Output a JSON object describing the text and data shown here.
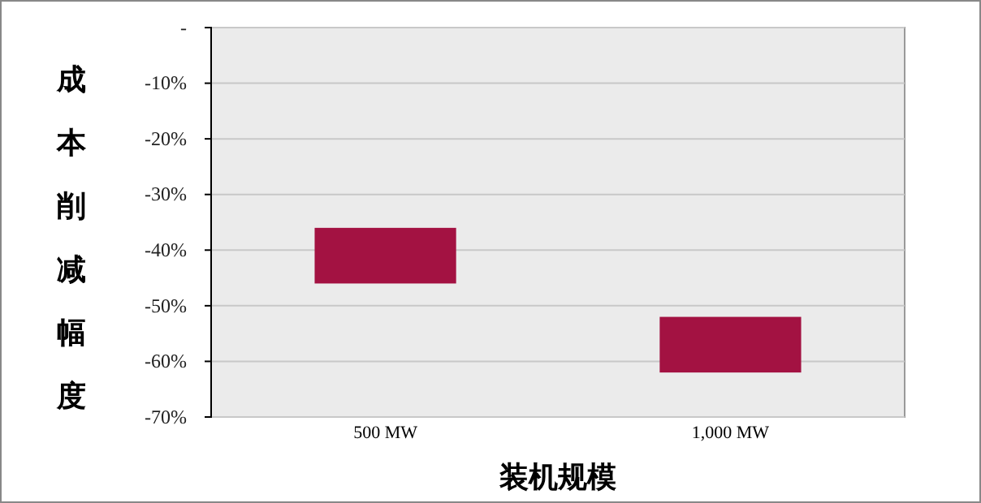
{
  "chart_data": {
    "type": "bar",
    "xlabel": "装机规模",
    "ylabel": "成本削减幅度",
    "categories": [
      "500 MW",
      "1,000 MW"
    ],
    "values": [
      10,
      10
    ],
    "base": [
      -46,
      -62
    ],
    "color": "#a31242",
    "ylim": [
      -70,
      0
    ],
    "yticks": [
      {
        "value": 0,
        "label": "-"
      },
      {
        "value": -10,
        "label": "-10%"
      },
      {
        "value": -20,
        "label": "-20%"
      },
      {
        "value": -30,
        "label": "-30%"
      },
      {
        "value": -40,
        "label": "-40%"
      },
      {
        "value": -50,
        "label": "-50%"
      },
      {
        "value": -60,
        "label": "-60%"
      },
      {
        "value": -70,
        "label": "-70%"
      }
    ],
    "grid": "y"
  }
}
